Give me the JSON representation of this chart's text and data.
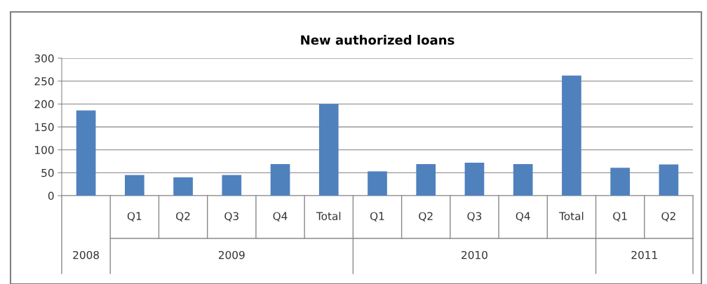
{
  "chart_data": {
    "type": "bar",
    "title": "New authorized loans",
    "categories": [
      null,
      "Q1",
      "Q2",
      "Q3",
      "Q4",
      "Total",
      "Q1",
      "Q2",
      "Q3",
      "Q4",
      "Total",
      "Q1",
      "Q2"
    ],
    "values": [
      186,
      45,
      40,
      45,
      69,
      200,
      53,
      69,
      72,
      69,
      262,
      61,
      68
    ],
    "color": "#4f81bd",
    "ylim": [
      0,
      300
    ],
    "yticks": [
      0,
      50,
      100,
      150,
      200,
      250,
      300
    ],
    "grid": "y",
    "annotations": [
      "2008",
      "2009",
      "2010",
      "2011"
    ]
  }
}
